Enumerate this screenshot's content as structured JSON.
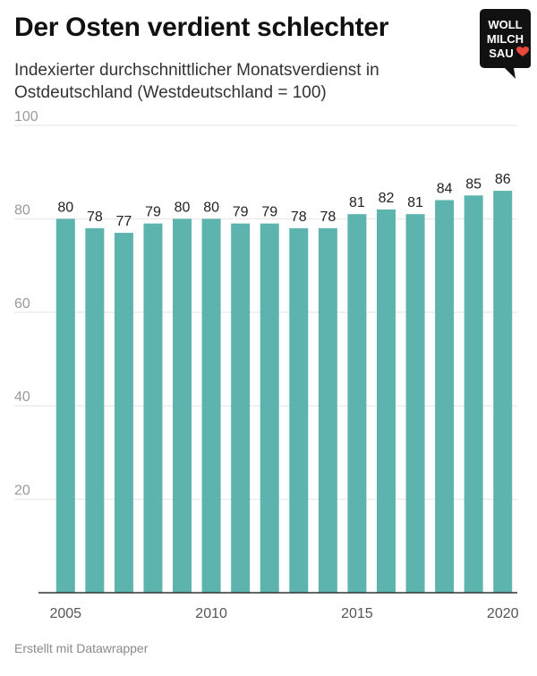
{
  "header": {
    "title": "Der Osten verdient schlechter",
    "subtitle": "Indexierter durchschnittlicher Monatsverdienst in Ostdeutschland (Westdeutschland = 100)"
  },
  "logo": {
    "lines": [
      "WOLL",
      "MILCH",
      "SAU"
    ],
    "heart_color": "#e8473b",
    "background": "#111111"
  },
  "footer": {
    "credit": "Erstellt mit Datawrapper"
  },
  "chart_data": {
    "type": "bar",
    "categories": [
      "2005",
      "2006",
      "2007",
      "2008",
      "2009",
      "2010",
      "2011",
      "2012",
      "2013",
      "2014",
      "2015",
      "2016",
      "2017",
      "2018",
      "2019",
      "2020"
    ],
    "values": [
      80,
      78,
      77,
      79,
      80,
      80,
      79,
      79,
      78,
      78,
      81,
      82,
      81,
      84,
      85,
      86
    ],
    "ylim": [
      0,
      100
    ],
    "yticks": [
      20,
      40,
      60,
      80,
      100
    ],
    "xtick_labels": [
      "2005",
      "2010",
      "2015",
      "2020"
    ],
    "bar_color": "#5db3ad",
    "grid": true,
    "legend": "none",
    "xlabel": "",
    "ylabel": ""
  }
}
